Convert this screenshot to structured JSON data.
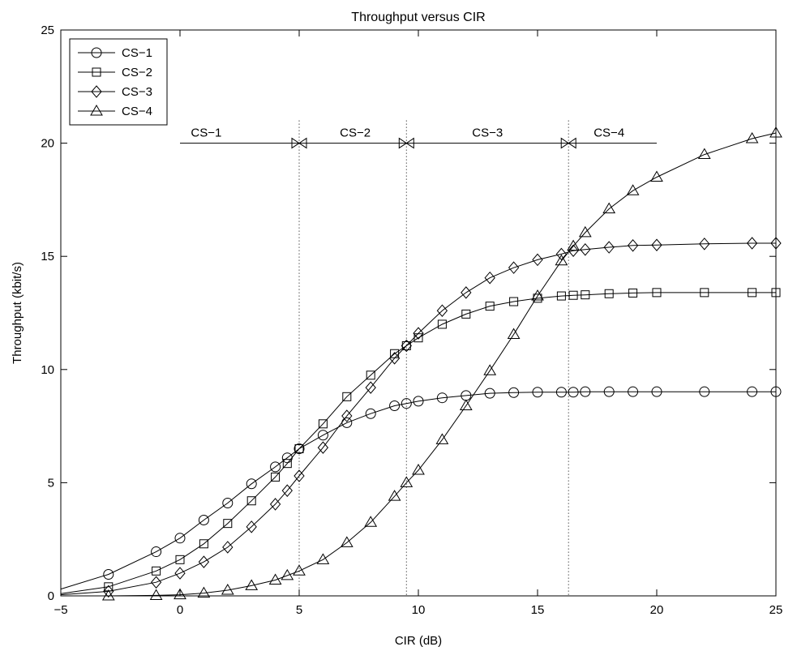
{
  "chart_data": {
    "type": "line",
    "title": "Throughput versus CIR",
    "xlabel": "CIR (dB)",
    "ylabel": "Throughput (kbit/s)",
    "xlim": [
      -5,
      25
    ],
    "ylim": [
      0,
      25
    ],
    "xticks": [
      -5,
      0,
      5,
      10,
      15,
      20,
      25
    ],
    "yticks": [
      0,
      5,
      10,
      15,
      20,
      25
    ],
    "grid": false,
    "legend_position": "top-left",
    "series": [
      {
        "name": "CS−1",
        "marker": "circle",
        "x": [
          -5,
          -3,
          -1,
          0,
          1,
          2,
          3,
          4,
          4.5,
          5,
          6,
          7,
          8,
          9,
          9.5,
          10,
          11,
          12,
          13,
          14,
          15,
          16,
          16.5,
          17,
          18,
          19,
          20,
          22,
          24,
          25
        ],
        "y": [
          0.3,
          0.95,
          1.95,
          2.55,
          3.35,
          4.1,
          4.95,
          5.7,
          6.1,
          6.5,
          7.1,
          7.65,
          8.05,
          8.4,
          8.5,
          8.6,
          8.75,
          8.85,
          8.95,
          8.98,
          9.0,
          9.0,
          9.0,
          9.02,
          9.02,
          9.02,
          9.02,
          9.02,
          9.02,
          9.02
        ],
        "marker_x": [
          -3,
          -1,
          0,
          1,
          2,
          3,
          4,
          4.5,
          5,
          6,
          7,
          8,
          9,
          9.5,
          10,
          11,
          12,
          13,
          14,
          15,
          16,
          16.5,
          17,
          18,
          19,
          20,
          22,
          24,
          25
        ]
      },
      {
        "name": "CS−2",
        "marker": "square",
        "x": [
          -5,
          -3,
          -1,
          0,
          1,
          2,
          3,
          4,
          4.5,
          5,
          6,
          7,
          8,
          9,
          9.5,
          10,
          11,
          12,
          13,
          14,
          15,
          16,
          16.5,
          17,
          18,
          19,
          20,
          22,
          24,
          25
        ],
        "y": [
          0.1,
          0.4,
          1.1,
          1.6,
          2.3,
          3.2,
          4.2,
          5.25,
          5.85,
          6.5,
          7.6,
          8.8,
          9.75,
          10.7,
          11.05,
          11.4,
          12.0,
          12.45,
          12.8,
          13.0,
          13.15,
          13.25,
          13.28,
          13.3,
          13.35,
          13.38,
          13.4,
          13.4,
          13.4,
          13.4
        ],
        "marker_x": [
          -3,
          -1,
          0,
          1,
          2,
          3,
          4,
          4.5,
          5,
          6,
          7,
          8,
          9,
          9.5,
          10,
          11,
          12,
          13,
          14,
          15,
          16,
          16.5,
          17,
          18,
          19,
          20,
          22,
          24,
          25
        ]
      },
      {
        "name": "CS−3",
        "marker": "diamond",
        "x": [
          -5,
          -3,
          -1,
          0,
          1,
          2,
          3,
          4,
          4.5,
          5,
          6,
          7,
          8,
          9,
          9.5,
          10,
          11,
          12,
          13,
          14,
          15,
          16,
          16.5,
          17,
          18,
          19,
          20,
          22,
          24,
          25
        ],
        "y": [
          0.05,
          0.2,
          0.6,
          1.0,
          1.5,
          2.15,
          3.05,
          4.05,
          4.65,
          5.3,
          6.55,
          7.95,
          9.2,
          10.5,
          11.05,
          11.6,
          12.6,
          13.4,
          14.05,
          14.5,
          14.85,
          15.1,
          15.25,
          15.3,
          15.4,
          15.48,
          15.5,
          15.55,
          15.58,
          15.58
        ],
        "marker_x": [
          -3,
          -1,
          0,
          1,
          2,
          3,
          4,
          4.5,
          5,
          6,
          7,
          8,
          9,
          9.5,
          10,
          11,
          12,
          13,
          14,
          15,
          16,
          16.5,
          17,
          18,
          19,
          20,
          22,
          24,
          25
        ]
      },
      {
        "name": "CS−4",
        "marker": "triangle",
        "x": [
          -5,
          -3,
          -1,
          0,
          1,
          2,
          3,
          4,
          4.5,
          5,
          6,
          7,
          8,
          9,
          9.5,
          10,
          11,
          12,
          13,
          14,
          15,
          16,
          16.5,
          17,
          18,
          19,
          20,
          22,
          24,
          25
        ],
        "y": [
          0.0,
          0.0,
          0.02,
          0.05,
          0.12,
          0.25,
          0.45,
          0.7,
          0.9,
          1.1,
          1.6,
          2.35,
          3.25,
          4.4,
          5.0,
          5.55,
          6.9,
          8.4,
          9.95,
          11.55,
          13.25,
          14.8,
          15.45,
          16.05,
          17.1,
          17.9,
          18.5,
          19.5,
          20.2,
          20.45
        ],
        "marker_x": [
          -3,
          -1,
          0,
          1,
          2,
          3,
          4,
          4.5,
          5,
          6,
          7,
          8,
          9,
          9.5,
          10,
          11,
          12,
          13,
          14,
          15,
          16,
          16.5,
          17,
          18,
          19,
          20,
          22,
          24,
          25
        ]
      }
    ],
    "annotations": {
      "region_line_y": 20,
      "region_line_x": [
        0,
        20
      ],
      "boundaries": [
        5,
        9.5,
        16.3
      ],
      "regions": [
        {
          "label": "CS−1",
          "x": 1.1
        },
        {
          "label": "CS−2",
          "x": 7.35
        },
        {
          "label": "CS−3",
          "x": 12.9
        },
        {
          "label": "CS−4",
          "x": 18.0
        }
      ]
    }
  }
}
